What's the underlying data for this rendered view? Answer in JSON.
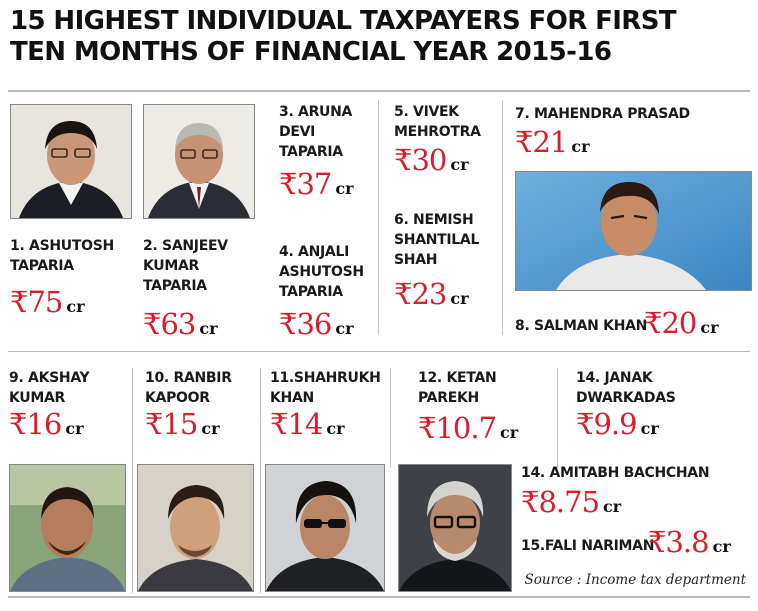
{
  "title": {
    "line1": "15 HIGHEST INDIVIDUAL TAXPAYERS FOR FIRST",
    "line2": "TEN MONTHS OF FINANCIAL YEAR 2015-16"
  },
  "unit": "cr",
  "entries": [
    {
      "rank": "1.",
      "lines": [
        "ASHUTOSH",
        "TAPARIA"
      ],
      "amount": "₹75"
    },
    {
      "rank": "2.",
      "lines": [
        "SANJEEV",
        "KUMAR",
        "TAPARIA"
      ],
      "amount": "₹63"
    },
    {
      "rank": "3.",
      "lines": [
        "ARUNA",
        "DEVI",
        "TAPARIA"
      ],
      "amount": "₹37"
    },
    {
      "rank": "4.",
      "lines": [
        "ANJALI",
        "ASHUTOSH",
        "TAPARIA"
      ],
      "amount": "₹36"
    },
    {
      "rank": "5.",
      "lines": [
        "VIVEK",
        "MEHROTRA"
      ],
      "amount": "₹30"
    },
    {
      "rank": "6.",
      "lines": [
        "NEMISH",
        "SHANTILAL",
        "SHAH"
      ],
      "amount": "₹23"
    },
    {
      "rank": "7.",
      "lines": [
        "MAHENDRA PRASAD"
      ],
      "amount": "₹21"
    },
    {
      "rank": "8.",
      "lines": [
        "SALMAN KHAN"
      ],
      "amount": "₹20"
    },
    {
      "rank": "9.",
      "lines": [
        "AKSHAY",
        "KUMAR"
      ],
      "amount": "₹16"
    },
    {
      "rank": "10.",
      "lines": [
        "RANBIR",
        "KAPOOR"
      ],
      "amount": "₹15"
    },
    {
      "rank": "11.",
      "lines": [
        "SHAHRUKH",
        "KHAN"
      ],
      "amount": "₹14"
    },
    {
      "rank": "12.",
      "lines": [
        "KETAN",
        "PAREKH"
      ],
      "amount": "₹10.7"
    },
    {
      "rank": "14.",
      "lines": [
        "JANAK",
        "DWARKADAS"
      ],
      "amount": "₹9.9"
    },
    {
      "rank": "14.",
      "lines": [
        "AMITABH BACHCHAN"
      ],
      "amount": "₹8.75"
    },
    {
      "rank": "15.",
      "lines": [
        "FALI NARIMAN"
      ],
      "amount": "₹3.8"
    }
  ],
  "source": "Source : Income tax department",
  "colors": {
    "amount": "#d81e2b",
    "rule": "#b9b9b9"
  },
  "photos": [
    {
      "icon": "ashutosh-taparia-portrait"
    },
    {
      "icon": "sanjeev-kumar-taparia-portrait"
    },
    {
      "icon": "salman-khan-portrait"
    },
    {
      "icon": "akshay-kumar-portrait"
    },
    {
      "icon": "ranbir-kapoor-portrait"
    },
    {
      "icon": "shahrukh-khan-portrait"
    },
    {
      "icon": "amitabh-bachchan-portrait"
    }
  ]
}
